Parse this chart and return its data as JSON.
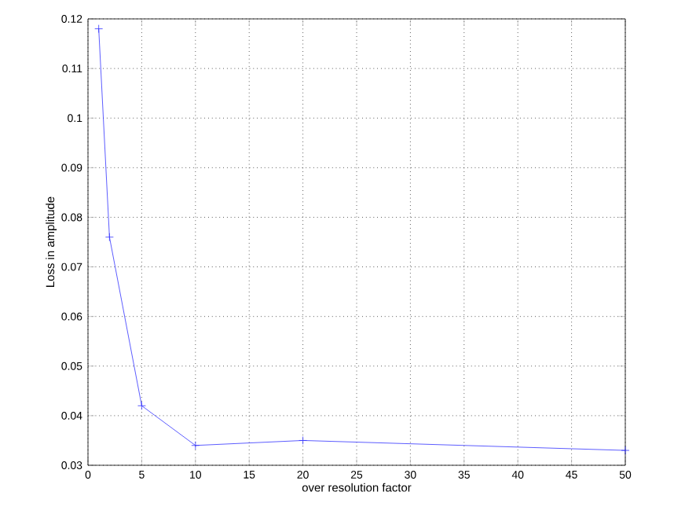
{
  "chart_data": {
    "type": "line",
    "xlabel": "over resolution factor",
    "ylabel": "Loss in amplitude",
    "x": [
      1,
      2,
      5,
      10,
      20,
      50
    ],
    "series": [
      {
        "color": "#3333ff",
        "values": [
          0.118,
          0.076,
          0.042,
          0.034,
          0.035,
          0.033
        ]
      }
    ],
    "xlim": [
      0,
      50
    ],
    "ylim": [
      0.03,
      0.12
    ],
    "xticks": [
      0,
      5,
      10,
      15,
      20,
      25,
      30,
      35,
      40,
      45,
      50
    ],
    "yticks": [
      0.03,
      0.04,
      0.05,
      0.06,
      0.07,
      0.08,
      0.09,
      0.1,
      0.11,
      0.12
    ],
    "grid": true,
    "marker": "cross",
    "line_style": "solid"
  }
}
